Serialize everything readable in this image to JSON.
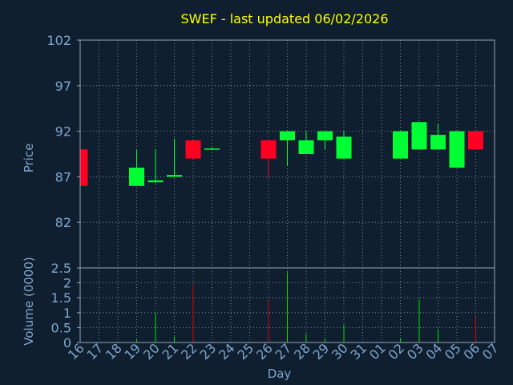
{
  "chart_data": [
    {
      "type": "candlestick",
      "title": "SWEF - last updated 06/02/2026",
      "ylabel": "Price",
      "xlabel": "Day",
      "ylim": [
        77,
        102
      ],
      "yticks": [
        102,
        97,
        92,
        87,
        82
      ],
      "grid": true,
      "categories": [
        "16",
        "17",
        "18",
        "19",
        "20",
        "21",
        "22",
        "23",
        "24",
        "25",
        "26",
        "27",
        "28",
        "29",
        "30",
        "31",
        "01",
        "02",
        "03",
        "04",
        "05",
        "06",
        "07"
      ],
      "candles": [
        {
          "day": "16",
          "open": 90.0,
          "high": 90.0,
          "low": 86.0,
          "close": 86.0
        },
        {
          "day": "19",
          "open": 86.0,
          "high": 90.0,
          "low": 86.0,
          "close": 88.0
        },
        {
          "day": "20",
          "open": 86.4,
          "high": 90.0,
          "low": 86.3,
          "close": 86.6
        },
        {
          "day": "21",
          "open": 87.0,
          "high": 91.2,
          "low": 87.0,
          "close": 87.2
        },
        {
          "day": "22",
          "open": 91.0,
          "high": 91.0,
          "low": 89.0,
          "close": 89.0
        },
        {
          "day": "23",
          "open": 90.0,
          "high": 90.2,
          "low": 89.9,
          "close": 90.1
        },
        {
          "day": "26",
          "open": 91.0,
          "high": 91.0,
          "low": 87.0,
          "close": 89.0
        },
        {
          "day": "27",
          "open": 91.0,
          "high": 92.0,
          "low": 88.2,
          "close": 92.0
        },
        {
          "day": "28",
          "open": 89.5,
          "high": 92.0,
          "low": 89.5,
          "close": 91.0
        },
        {
          "day": "29",
          "open": 91.0,
          "high": 92.0,
          "low": 90.0,
          "close": 92.0
        },
        {
          "day": "30",
          "open": 89.0,
          "high": 92.0,
          "low": 89.0,
          "close": 91.4
        },
        {
          "day": "02",
          "open": 89.0,
          "high": 92.0,
          "low": 89.0,
          "close": 92.0
        },
        {
          "day": "03",
          "open": 90.0,
          "high": 93.0,
          "low": 90.0,
          "close": 93.0
        },
        {
          "day": "04",
          "open": 90.0,
          "high": 92.8,
          "low": 90.0,
          "close": 91.6
        },
        {
          "day": "05",
          "open": 88.0,
          "high": 92.0,
          "low": 88.0,
          "close": 92.0
        },
        {
          "day": "06",
          "open": 92.0,
          "high": 92.0,
          "low": 90.0,
          "close": 90.0
        }
      ]
    },
    {
      "type": "bar",
      "ylabel": "Volume (0000)",
      "ylim": [
        0,
        2.5
      ],
      "yticks": [
        "0",
        "0.5",
        "1",
        "1.5",
        "2",
        "2.5"
      ],
      "grid": true,
      "volumes": [
        {
          "day": "19",
          "value": 0.1,
          "color": "#00e000"
        },
        {
          "day": "20",
          "value": 1.0,
          "color": "#00e000"
        },
        {
          "day": "21",
          "value": 0.2,
          "color": "#00e000"
        },
        {
          "day": "22",
          "value": 1.9,
          "color": "#e00000"
        },
        {
          "day": "26",
          "value": 1.4,
          "color": "#e00000"
        },
        {
          "day": "27",
          "value": 2.35,
          "color": "#00e000"
        },
        {
          "day": "28",
          "value": 0.3,
          "color": "#00e000"
        },
        {
          "day": "29",
          "value": 0.1,
          "color": "#00e000"
        },
        {
          "day": "30",
          "value": 0.6,
          "color": "#00e000"
        },
        {
          "day": "02",
          "value": 0.15,
          "color": "#00e000"
        },
        {
          "day": "03",
          "value": 1.45,
          "color": "#00e000"
        },
        {
          "day": "04",
          "value": 0.45,
          "color": "#00e000"
        },
        {
          "day": "06",
          "value": 0.85,
          "color": "#e00000"
        }
      ]
    }
  ],
  "colors": {
    "background": "#0f1f30",
    "text": "#7fa6cc",
    "title": "#ffff00",
    "up": "#00ff33",
    "down": "#ff0022",
    "grid": "#9aa4b0"
  }
}
